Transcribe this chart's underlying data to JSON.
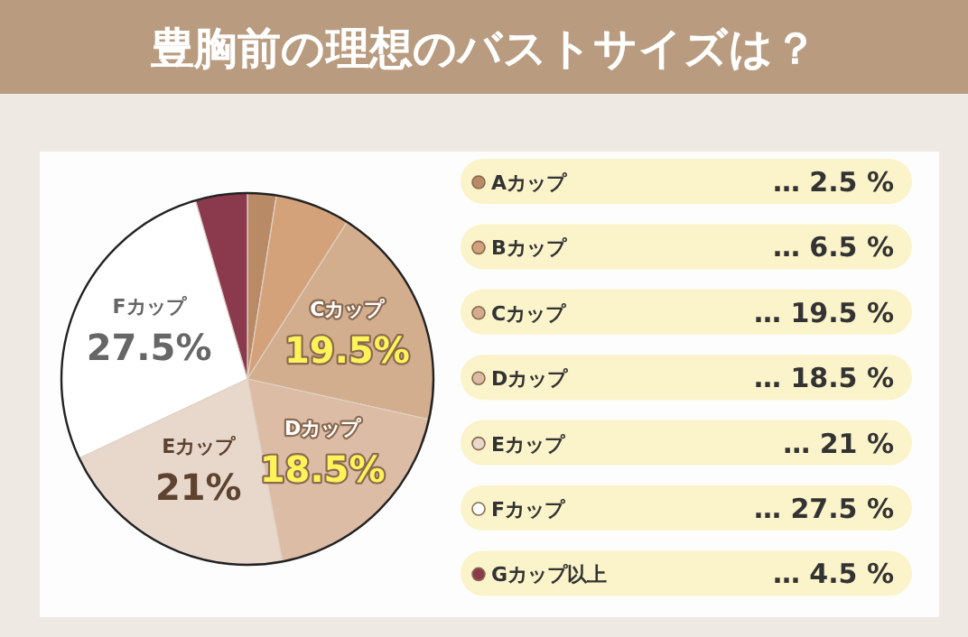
{
  "chart_data": {
    "type": "pie",
    "title": "豊胸前の理想のバストサイズは？",
    "categories": [
      "Aカップ",
      "Bカップ",
      "Cカップ",
      "Dカップ",
      "Eカップ",
      "Fカップ",
      "Gカップ以上"
    ],
    "values": [
      2.5,
      6.5,
      19.5,
      18.5,
      21,
      27.5,
      4.5
    ],
    "colors": [
      "#b98a66",
      "#d4a27a",
      "#d2ad8e",
      "#dcbca5",
      "#e8d8cc",
      "#ffffff",
      "#8b3a4e"
    ],
    "legend": "right",
    "value_labels": [
      null,
      null,
      "19.5%",
      "18.5%",
      "21%",
      "27.5%",
      null
    ],
    "annotations": [
      "… 2.5 %",
      "… 6.5 %",
      "… 19.5 %",
      "… 18.5 %",
      "… 21 %",
      "… 27.5 %",
      "… 4.5 %"
    ]
  }
}
